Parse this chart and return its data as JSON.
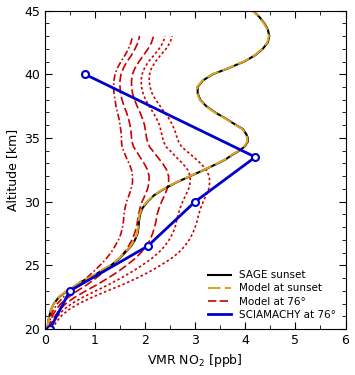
{
  "xlabel": "VMR NO$_2$ [ppb]",
  "ylabel": "Altitude [km]",
  "xlim": [
    0,
    6
  ],
  "ylim": [
    20,
    45
  ],
  "xticks": [
    0,
    1,
    2,
    3,
    4,
    5,
    6
  ],
  "yticks": [
    20,
    25,
    30,
    35,
    40,
    45
  ],
  "sage_sunset_alt": [
    20,
    20.3,
    20.7,
    21,
    21.5,
    22,
    22.5,
    23,
    23.3,
    23.7,
    24,
    24.3,
    24.7,
    25,
    25.5,
    26,
    26.5,
    27,
    27.5,
    28,
    28.5,
    29,
    29.5,
    30,
    30.5,
    31,
    31.5,
    32,
    32.5,
    33,
    33.3,
    33.7,
    34,
    34.3,
    34.7,
    35,
    35.3,
    35.7,
    36,
    36.5,
    37,
    37.5,
    38,
    38.5,
    39,
    39.5,
    40,
    40.5,
    41,
    41.5,
    42,
    42.5,
    43,
    43.5,
    44,
    44.5,
    45
  ],
  "sage_sunset_vmr": [
    0.05,
    0.06,
    0.07,
    0.09,
    0.12,
    0.18,
    0.28,
    0.45,
    0.58,
    0.72,
    0.88,
    1.02,
    1.18,
    1.32,
    1.48,
    1.6,
    1.72,
    1.8,
    1.85,
    1.87,
    1.88,
    1.9,
    1.95,
    2.05,
    2.18,
    2.38,
    2.62,
    2.9,
    3.18,
    3.45,
    3.6,
    3.75,
    3.88,
    3.98,
    4.05,
    4.05,
    4.02,
    3.95,
    3.82,
    3.62,
    3.4,
    3.22,
    3.1,
    3.05,
    3.05,
    3.15,
    3.35,
    3.68,
    3.98,
    4.2,
    4.35,
    4.45,
    4.48,
    4.45,
    4.38,
    4.28,
    4.15
  ],
  "model_sunset_alt": [
    20,
    20.3,
    20.7,
    21,
    21.5,
    22,
    22.5,
    23,
    23.3,
    23.7,
    24,
    24.3,
    24.7,
    25,
    25.5,
    26,
    26.5,
    27,
    27.5,
    28,
    28.5,
    29,
    29.5,
    30,
    30.5,
    31,
    31.5,
    32,
    32.5,
    33,
    33.3,
    33.7,
    34,
    34.3,
    34.7,
    35,
    35.3,
    35.7,
    36,
    36.5,
    37,
    37.5,
    38,
    38.5,
    39,
    39.5,
    40,
    40.5,
    41,
    41.5,
    42,
    42.5,
    43,
    43.5,
    44,
    44.5,
    45
  ],
  "model_sunset_vmr": [
    0.05,
    0.06,
    0.07,
    0.09,
    0.12,
    0.18,
    0.27,
    0.44,
    0.57,
    0.71,
    0.87,
    1.01,
    1.17,
    1.31,
    1.47,
    1.59,
    1.71,
    1.79,
    1.84,
    1.86,
    1.87,
    1.89,
    1.94,
    2.04,
    2.17,
    2.37,
    2.61,
    2.89,
    3.17,
    3.44,
    3.59,
    3.74,
    3.87,
    3.97,
    4.04,
    4.04,
    4.01,
    3.94,
    3.81,
    3.61,
    3.39,
    3.21,
    3.09,
    3.04,
    3.04,
    3.14,
    3.34,
    3.67,
    3.97,
    4.19,
    4.34,
    4.44,
    4.47,
    4.44,
    4.37,
    4.27,
    4.14
  ],
  "sciamachy_alt": [
    20,
    23,
    26.5,
    30,
    33.5,
    40
  ],
  "sciamachy_vmr": [
    0.1,
    0.5,
    2.05,
    3.0,
    4.2,
    0.8
  ],
  "model76_lines": [
    {
      "alt": [
        20,
        20.5,
        21,
        21.5,
        22,
        22.5,
        23,
        23.5,
        24,
        24.5,
        25,
        25.5,
        26,
        26.5,
        27,
        27.5,
        28,
        28.5,
        29,
        29.5,
        30,
        30.5,
        31,
        31.5,
        32,
        32.5,
        33,
        33.5,
        34,
        34.3,
        34.7,
        35,
        35.5,
        36,
        36.5,
        37,
        37.5,
        38,
        38.5,
        39,
        39.5,
        40,
        40.5,
        41,
        41.5,
        42,
        42.5,
        43
      ],
      "vmr": [
        0.07,
        0.09,
        0.12,
        0.17,
        0.25,
        0.37,
        0.52,
        0.68,
        0.83,
        0.97,
        1.1,
        1.22,
        1.32,
        1.4,
        1.47,
        1.52,
        1.55,
        1.57,
        1.58,
        1.6,
        1.63,
        1.68,
        1.72,
        1.75,
        1.75,
        1.73,
        1.68,
        1.62,
        1.57,
        1.54,
        1.53,
        1.53,
        1.52,
        1.5,
        1.48,
        1.45,
        1.42,
        1.4,
        1.38,
        1.37,
        1.38,
        1.4,
        1.45,
        1.52,
        1.6,
        1.67,
        1.72,
        1.75
      ],
      "style": "dashdot"
    },
    {
      "alt": [
        20,
        20.5,
        21,
        21.5,
        22,
        22.5,
        23,
        23.5,
        24,
        24.5,
        25,
        25.5,
        26,
        26.5,
        27,
        27.5,
        28,
        28.5,
        29,
        29.5,
        30,
        30.5,
        31,
        31.5,
        32,
        32.5,
        33,
        33.5,
        34,
        34.3,
        34.7,
        35,
        35.5,
        36,
        36.5,
        37,
        37.5,
        38,
        38.5,
        39,
        39.5,
        40,
        40.5,
        41,
        41.5,
        42,
        42.5,
        43
      ],
      "vmr": [
        0.08,
        0.11,
        0.15,
        0.22,
        0.32,
        0.47,
        0.65,
        0.85,
        1.02,
        1.18,
        1.33,
        1.47,
        1.58,
        1.67,
        1.74,
        1.79,
        1.83,
        1.85,
        1.87,
        1.9,
        1.94,
        2.0,
        2.05,
        2.08,
        2.08,
        2.05,
        1.98,
        1.9,
        1.82,
        1.77,
        1.74,
        1.73,
        1.72,
        1.7,
        1.67,
        1.63,
        1.58,
        1.54,
        1.51,
        1.5,
        1.5,
        1.52,
        1.57,
        1.64,
        1.73,
        1.8,
        1.86,
        1.89
      ],
      "style": "dashed"
    },
    {
      "alt": [
        20,
        20.5,
        21,
        21.5,
        22,
        22.5,
        23,
        23.5,
        24,
        24.5,
        25,
        25.5,
        26,
        26.5,
        27,
        27.5,
        28,
        28.5,
        29,
        29.5,
        30,
        30.5,
        31,
        31.5,
        32,
        32.5,
        33,
        33.5,
        34,
        34.3,
        34.7,
        35,
        35.5,
        36,
        36.5,
        37,
        37.5,
        38,
        38.5,
        39,
        39.5,
        40,
        40.5,
        41,
        41.5,
        42,
        42.5,
        43
      ],
      "vmr": [
        0.1,
        0.14,
        0.2,
        0.29,
        0.42,
        0.6,
        0.82,
        1.05,
        1.26,
        1.46,
        1.63,
        1.79,
        1.92,
        2.02,
        2.1,
        2.15,
        2.19,
        2.22,
        2.24,
        2.28,
        2.33,
        2.39,
        2.44,
        2.47,
        2.47,
        2.43,
        2.35,
        2.25,
        2.15,
        2.09,
        2.05,
        2.03,
        2.01,
        1.99,
        1.95,
        1.9,
        1.84,
        1.79,
        1.75,
        1.73,
        1.73,
        1.75,
        1.8,
        1.88,
        1.97,
        2.06,
        2.13,
        2.17
      ],
      "style": "dashed"
    },
    {
      "alt": [
        20,
        20.5,
        21,
        21.5,
        22,
        22.5,
        23,
        23.5,
        24,
        24.5,
        25,
        25.5,
        26,
        26.5,
        27,
        27.5,
        28,
        28.5,
        29,
        29.5,
        30,
        30.5,
        31,
        31.5,
        32,
        32.5,
        33,
        33.5,
        34,
        34.3,
        34.7,
        35,
        35.5,
        36,
        36.5,
        37,
        37.5,
        38,
        38.5,
        39,
        39.5,
        40,
        40.5,
        41,
        41.5,
        42,
        42.5,
        43
      ],
      "vmr": [
        0.12,
        0.17,
        0.25,
        0.37,
        0.54,
        0.76,
        1.02,
        1.28,
        1.52,
        1.74,
        1.94,
        2.12,
        2.27,
        2.39,
        2.48,
        2.55,
        2.6,
        2.63,
        2.66,
        2.7,
        2.75,
        2.81,
        2.87,
        2.9,
        2.9,
        2.85,
        2.75,
        2.62,
        2.5,
        2.42,
        2.37,
        2.35,
        2.32,
        2.29,
        2.23,
        2.16,
        2.08,
        2.01,
        1.96,
        1.93,
        1.92,
        1.94,
        1.99,
        2.07,
        2.18,
        2.28,
        2.36,
        2.4
      ],
      "style": "dotted"
    },
    {
      "alt": [
        20,
        20.5,
        21,
        21.5,
        22,
        22.5,
        23,
        23.5,
        24,
        24.5,
        25,
        25.5,
        26,
        26.5,
        27,
        27.5,
        28,
        28.5,
        29,
        29.5,
        30,
        30.5,
        31,
        31.5,
        32,
        32.5,
        33,
        33.5,
        34,
        34.3,
        34.7,
        35,
        35.5,
        36,
        36.5,
        37,
        37.5,
        38,
        38.5,
        39,
        39.5,
        40,
        40.5,
        41,
        41.5,
        42,
        42.5,
        43
      ],
      "vmr": [
        0.15,
        0.22,
        0.32,
        0.47,
        0.68,
        0.95,
        1.25,
        1.56,
        1.84,
        2.09,
        2.31,
        2.51,
        2.67,
        2.79,
        2.88,
        2.95,
        3.0,
        3.04,
        3.07,
        3.11,
        3.16,
        3.22,
        3.27,
        3.29,
        3.28,
        3.22,
        3.11,
        2.97,
        2.82,
        2.73,
        2.67,
        2.64,
        2.6,
        2.55,
        2.48,
        2.39,
        2.3,
        2.21,
        2.14,
        2.1,
        2.08,
        2.09,
        2.13,
        2.21,
        2.31,
        2.42,
        2.5,
        2.54
      ],
      "style": "dotted"
    }
  ],
  "sage_color": "#000000",
  "model_sunset_color": "#DAA520",
  "model76_color": "#CC0000",
  "sciamachy_color": "#0000CC",
  "legend_items": [
    "SAGE sunset",
    "Model at sunset",
    "Model at 76°",
    "SCIAMACHY at 76°"
  ],
  "legend_colors": [
    "#000000",
    "#DAA520",
    "#CC0000",
    "#0000CC"
  ]
}
